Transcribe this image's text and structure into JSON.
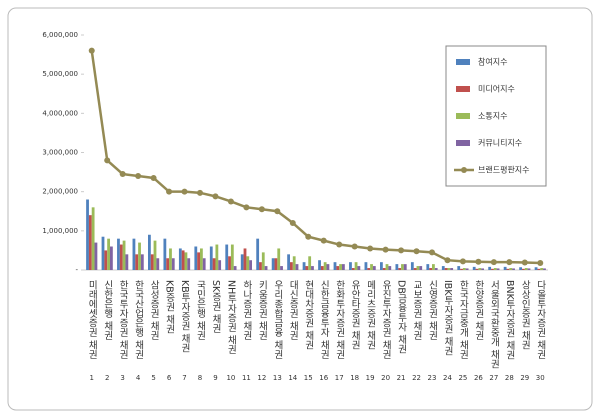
{
  "chart_data": {
    "type": "bar",
    "categories": [
      "미래에셋증권 채권",
      "신한은행 채권",
      "한국투자증권 채권",
      "한국산업은행 채권",
      "삼성증권 채권",
      "KB증권 채권",
      "KB투자증권 채권",
      "국민은행 채권",
      "SK증권 채권",
      "NH투자증권 채권",
      "하나증권 채권",
      "키움증권 채권",
      "우리종합금융 채권",
      "대신증권 채권",
      "현대차증권 채권",
      "신한금융투자 채권",
      "한화투자증권 채권",
      "유안타증권 채권",
      "메리츠증권 채권",
      "유진투자증권 채권",
      "DB금융투자 채권",
      "교보증권 채권",
      "신영증권 채권",
      "IBK투자증권 채권",
      "한국자금중개 채권",
      "한양증권 채권",
      "서울외국환중개 채권",
      "BNK투자증권 채권",
      "상상인증권 채권",
      "다올투자증권 채권"
    ],
    "category_numbers": [
      1,
      2,
      3,
      4,
      5,
      6,
      7,
      8,
      9,
      10,
      11,
      12,
      13,
      14,
      15,
      16,
      17,
      18,
      19,
      20,
      21,
      22,
      23,
      24,
      25,
      26,
      27,
      28,
      29,
      30
    ],
    "ylim": [
      0,
      6000000
    ],
    "yticks": [
      {
        "value": 0,
        "label": "-"
      },
      {
        "value": 1000000,
        "label": "1,000,000"
      },
      {
        "value": 2000000,
        "label": "2,000,000"
      },
      {
        "value": 3000000,
        "label": "3,000,000"
      },
      {
        "value": 4000000,
        "label": "4,000,000"
      },
      {
        "value": 5000000,
        "label": "5,000,000"
      },
      {
        "value": 6000000,
        "label": "6,000,000"
      }
    ],
    "legend": "right",
    "series": [
      {
        "name": "참여지수",
        "type": "bar",
        "color": "#4f81bd",
        "values": [
          1800000,
          850000,
          800000,
          800000,
          900000,
          800000,
          550000,
          600000,
          600000,
          650000,
          400000,
          800000,
          300000,
          400000,
          200000,
          250000,
          200000,
          200000,
          200000,
          200000,
          150000,
          200000,
          150000,
          100000,
          100000,
          80000,
          80000,
          80000,
          70000,
          70000
        ]
      },
      {
        "name": "미디어지수",
        "type": "bar",
        "color": "#c0504d",
        "values": [
          1400000,
          500000,
          650000,
          400000,
          400000,
          300000,
          500000,
          450000,
          300000,
          350000,
          550000,
          200000,
          300000,
          200000,
          100000,
          100000,
          100000,
          50000,
          50000,
          50000,
          50000,
          50000,
          50000,
          50000,
          30000,
          30000,
          30000,
          30000,
          30000,
          30000
        ]
      },
      {
        "name": "소통지수",
        "type": "bar",
        "color": "#9bbb59",
        "values": [
          1600000,
          800000,
          750000,
          700000,
          750000,
          550000,
          450000,
          550000,
          650000,
          650000,
          350000,
          450000,
          550000,
          350000,
          350000,
          200000,
          150000,
          200000,
          150000,
          150000,
          150000,
          100000,
          150000,
          50000,
          50000,
          50000,
          50000,
          50000,
          50000,
          50000
        ]
      },
      {
        "name": "커뮤니티지수",
        "type": "bar",
        "color": "#8064a2",
        "values": [
          700000,
          600000,
          400000,
          400000,
          300000,
          300000,
          300000,
          300000,
          250000,
          100000,
          250000,
          100000,
          100000,
          150000,
          100000,
          150000,
          150000,
          100000,
          100000,
          100000,
          150000,
          100000,
          50000,
          50000,
          40000,
          40000,
          40000,
          40000,
          40000,
          40000
        ]
      },
      {
        "name": "브랜드평판지수",
        "type": "line",
        "color": "#948a54",
        "values": [
          5600000,
          2800000,
          2450000,
          2400000,
          2350000,
          2000000,
          2000000,
          1970000,
          1880000,
          1750000,
          1600000,
          1550000,
          1500000,
          1200000,
          850000,
          750000,
          650000,
          600000,
          550000,
          520000,
          500000,
          480000,
          450000,
          250000,
          220000,
          210000,
          200000,
          200000,
          190000,
          180000
        ]
      }
    ]
  }
}
